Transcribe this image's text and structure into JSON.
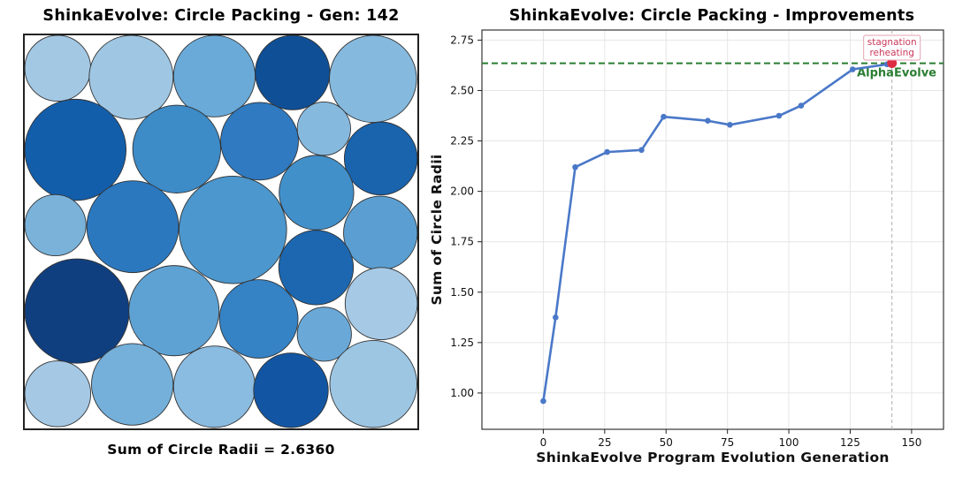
{
  "left_panel": {
    "title": "ShinkaEvolve: Circle Packing - Gen: 142",
    "caption": "Sum of Circle Radii = 2.6360"
  },
  "right_panel": {
    "title": "ShinkaEvolve: Circle Packing - Improvements"
  },
  "chart_data": [
    {
      "type": "scatter",
      "title": "ShinkaEvolve: Circle Packing - Gen: 142",
      "xlabel": "",
      "ylabel": "",
      "xlim": [
        0,
        1
      ],
      "ylim": [
        0,
        1
      ],
      "grid": false,
      "caption": "Sum of Circle Radii = 2.6360",
      "circles": [
        {
          "cx": 0.084,
          "cy": 0.084,
          "r": 0.084,
          "color": "#a3c8e4"
        },
        {
          "cx": 0.271,
          "cy": 0.107,
          "r": 0.107,
          "color": "#9fc7e3"
        },
        {
          "cx": 0.483,
          "cy": 0.104,
          "r": 0.104,
          "color": "#6aaad8"
        },
        {
          "cx": 0.682,
          "cy": 0.095,
          "r": 0.095,
          "color": "#0f4f96"
        },
        {
          "cx": 0.887,
          "cy": 0.111,
          "r": 0.111,
          "color": "#86b9de"
        },
        {
          "cx": 0.129,
          "cy": 0.292,
          "r": 0.129,
          "color": "#135eaa"
        },
        {
          "cx": 0.387,
          "cy": 0.29,
          "r": 0.112,
          "color": "#3d8bc7"
        },
        {
          "cx": 0.598,
          "cy": 0.27,
          "r": 0.099,
          "color": "#2f7ac1"
        },
        {
          "cx": 0.762,
          "cy": 0.238,
          "r": 0.068,
          "color": "#86b9de"
        },
        {
          "cx": 0.907,
          "cy": 0.314,
          "r": 0.093,
          "color": "#1a63ad"
        },
        {
          "cx": 0.078,
          "cy": 0.484,
          "r": 0.078,
          "color": "#7ab2da"
        },
        {
          "cx": 0.275,
          "cy": 0.488,
          "r": 0.117,
          "color": "#2c78bf"
        },
        {
          "cx": 0.53,
          "cy": 0.496,
          "r": 0.137,
          "color": "#4c97cd"
        },
        {
          "cx": 0.743,
          "cy": 0.401,
          "r": 0.095,
          "color": "#4290ca"
        },
        {
          "cx": 0.906,
          "cy": 0.504,
          "r": 0.094,
          "color": "#5b9fd2"
        },
        {
          "cx": 0.133,
          "cy": 0.703,
          "r": 0.133,
          "color": "#103f80"
        },
        {
          "cx": 0.38,
          "cy": 0.702,
          "r": 0.115,
          "color": "#5ea2d4"
        },
        {
          "cx": 0.596,
          "cy": 0.723,
          "r": 0.1,
          "color": "#3582c5"
        },
        {
          "cx": 0.742,
          "cy": 0.592,
          "r": 0.095,
          "color": "#1c67b0"
        },
        {
          "cx": 0.763,
          "cy": 0.762,
          "r": 0.069,
          "color": "#69a8d7"
        },
        {
          "cx": 0.908,
          "cy": 0.684,
          "r": 0.092,
          "color": "#a6c9e5"
        },
        {
          "cx": 0.084,
          "cy": 0.914,
          "r": 0.084,
          "color": "#a5c9e5"
        },
        {
          "cx": 0.274,
          "cy": 0.89,
          "r": 0.104,
          "color": "#74b0da"
        },
        {
          "cx": 0.483,
          "cy": 0.896,
          "r": 0.104,
          "color": "#8abbe0"
        },
        {
          "cx": 0.678,
          "cy": 0.905,
          "r": 0.095,
          "color": "#1256a3"
        },
        {
          "cx": 0.888,
          "cy": 0.889,
          "r": 0.111,
          "color": "#9dc6e3"
        }
      ]
    },
    {
      "type": "line",
      "title": "ShinkaEvolve: Circle Packing - Improvements",
      "xlabel": "ShinkaEvolve Program Evolution Generation",
      "ylabel": "Sum of Circle Radii",
      "xlim": [
        -25,
        163
      ],
      "ylim": [
        0.82,
        2.8
      ],
      "xticks": [
        0,
        25,
        50,
        75,
        100,
        125,
        150
      ],
      "yticks": [
        1.0,
        1.25,
        1.5,
        1.75,
        2.0,
        2.25,
        2.5,
        2.75
      ],
      "ytick_labels": [
        "1.00",
        "1.25",
        "1.50",
        "1.75",
        "2.00",
        "2.25",
        "2.50",
        "2.75"
      ],
      "grid": true,
      "series": [
        {
          "color": "#4a78c8",
          "x": [
            0,
            5,
            13,
            26,
            40,
            49,
            67,
            76,
            96,
            105,
            126,
            140,
            142
          ],
          "y": [
            0.96,
            1.375,
            2.12,
            2.195,
            2.205,
            2.37,
            2.35,
            2.33,
            2.375,
            2.425,
            2.605,
            2.63,
            2.636
          ]
        }
      ],
      "best_point": {
        "x": 142,
        "y": 2.636,
        "color": "#dd2c44"
      },
      "reference_line": {
        "label": "AlphaEvolve",
        "y": 2.635,
        "color": "#2a7d32"
      },
      "marker_line_x": 142,
      "annotation": {
        "text": [
          "stagnation",
          "reheating"
        ],
        "color": "#c9395a",
        "x": 142
      }
    }
  ]
}
